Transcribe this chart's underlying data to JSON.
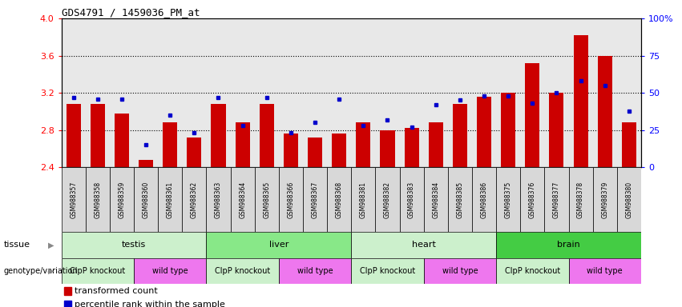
{
  "title": "GDS4791 / 1459036_PM_at",
  "samples": [
    "GSM988357",
    "GSM988358",
    "GSM988359",
    "GSM988360",
    "GSM988361",
    "GSM988362",
    "GSM988363",
    "GSM988364",
    "GSM988365",
    "GSM988366",
    "GSM988367",
    "GSM988368",
    "GSM988381",
    "GSM988382",
    "GSM988383",
    "GSM988384",
    "GSM988385",
    "GSM988386",
    "GSM988375",
    "GSM988376",
    "GSM988377",
    "GSM988378",
    "GSM988379",
    "GSM988380"
  ],
  "bar_values": [
    3.08,
    3.08,
    2.98,
    2.48,
    2.88,
    2.72,
    3.08,
    2.88,
    3.08,
    2.76,
    2.72,
    2.76,
    2.88,
    2.8,
    2.82,
    2.88,
    3.08,
    3.16,
    3.2,
    3.52,
    3.2,
    3.82,
    3.6,
    2.88
  ],
  "percentile_values": [
    47,
    46,
    46,
    15,
    35,
    23,
    47,
    28,
    47,
    23,
    30,
    46,
    28,
    32,
    27,
    42,
    45,
    48,
    48,
    43,
    50,
    58,
    55,
    38
  ],
  "tissues": [
    {
      "name": "testis",
      "start": 0,
      "end": 6,
      "color": "#ccf0cc"
    },
    {
      "name": "liver",
      "start": 6,
      "end": 12,
      "color": "#88e888"
    },
    {
      "name": "heart",
      "start": 12,
      "end": 18,
      "color": "#ccf0cc"
    },
    {
      "name": "brain",
      "start": 18,
      "end": 24,
      "color": "#44cc44"
    }
  ],
  "genotypes": [
    {
      "name": "ClpP knockout",
      "start": 0,
      "end": 3,
      "color": "#ccf0cc"
    },
    {
      "name": "wild type",
      "start": 3,
      "end": 6,
      "color": "#ee77ee"
    },
    {
      "name": "ClpP knockout",
      "start": 6,
      "end": 9,
      "color": "#ccf0cc"
    },
    {
      "name": "wild type",
      "start": 9,
      "end": 12,
      "color": "#ee77ee"
    },
    {
      "name": "ClpP knockout",
      "start": 12,
      "end": 15,
      "color": "#ccf0cc"
    },
    {
      "name": "wild type",
      "start": 15,
      "end": 18,
      "color": "#ee77ee"
    },
    {
      "name": "ClpP knockout",
      "start": 18,
      "end": 21,
      "color": "#ccf0cc"
    },
    {
      "name": "wild type",
      "start": 21,
      "end": 24,
      "color": "#ee77ee"
    }
  ],
  "ylim_left": [
    2.4,
    4.0
  ],
  "ylim_right": [
    0,
    100
  ],
  "yticks_left": [
    2.4,
    2.8,
    3.2,
    3.6,
    4.0
  ],
  "yticks_right": [
    0,
    25,
    50,
    75,
    100
  ],
  "bar_color": "#cc0000",
  "dot_color": "#0000cc",
  "bar_width": 0.6,
  "label_transformed": "transformed count",
  "label_percentile": "percentile rank within the sample",
  "grid_lines": [
    2.8,
    3.2,
    3.6
  ]
}
